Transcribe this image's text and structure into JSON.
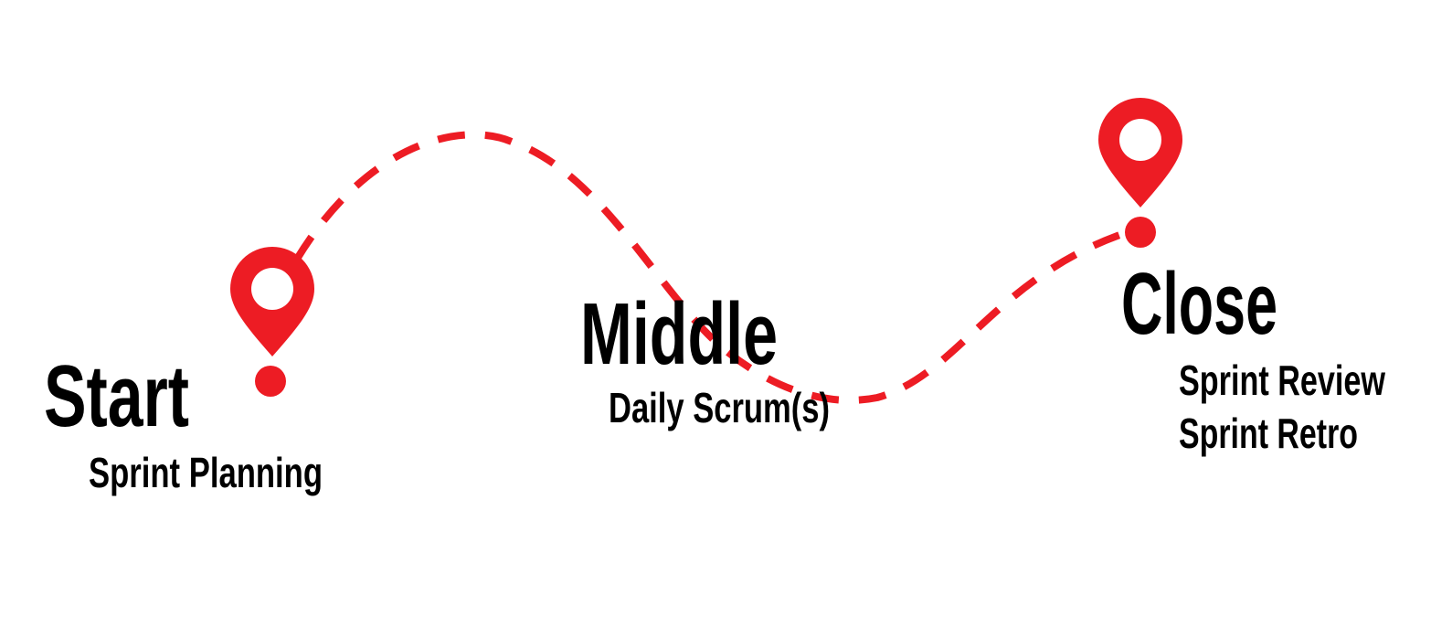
{
  "stages": [
    {
      "title": "Start",
      "items": [
        "Sprint Planning"
      ]
    },
    {
      "title": "Middle",
      "items": [
        "Daily Scrum(s)"
      ]
    },
    {
      "title": "Close",
      "items": [
        "Sprint Review",
        "Sprint Retro"
      ]
    }
  ]
}
